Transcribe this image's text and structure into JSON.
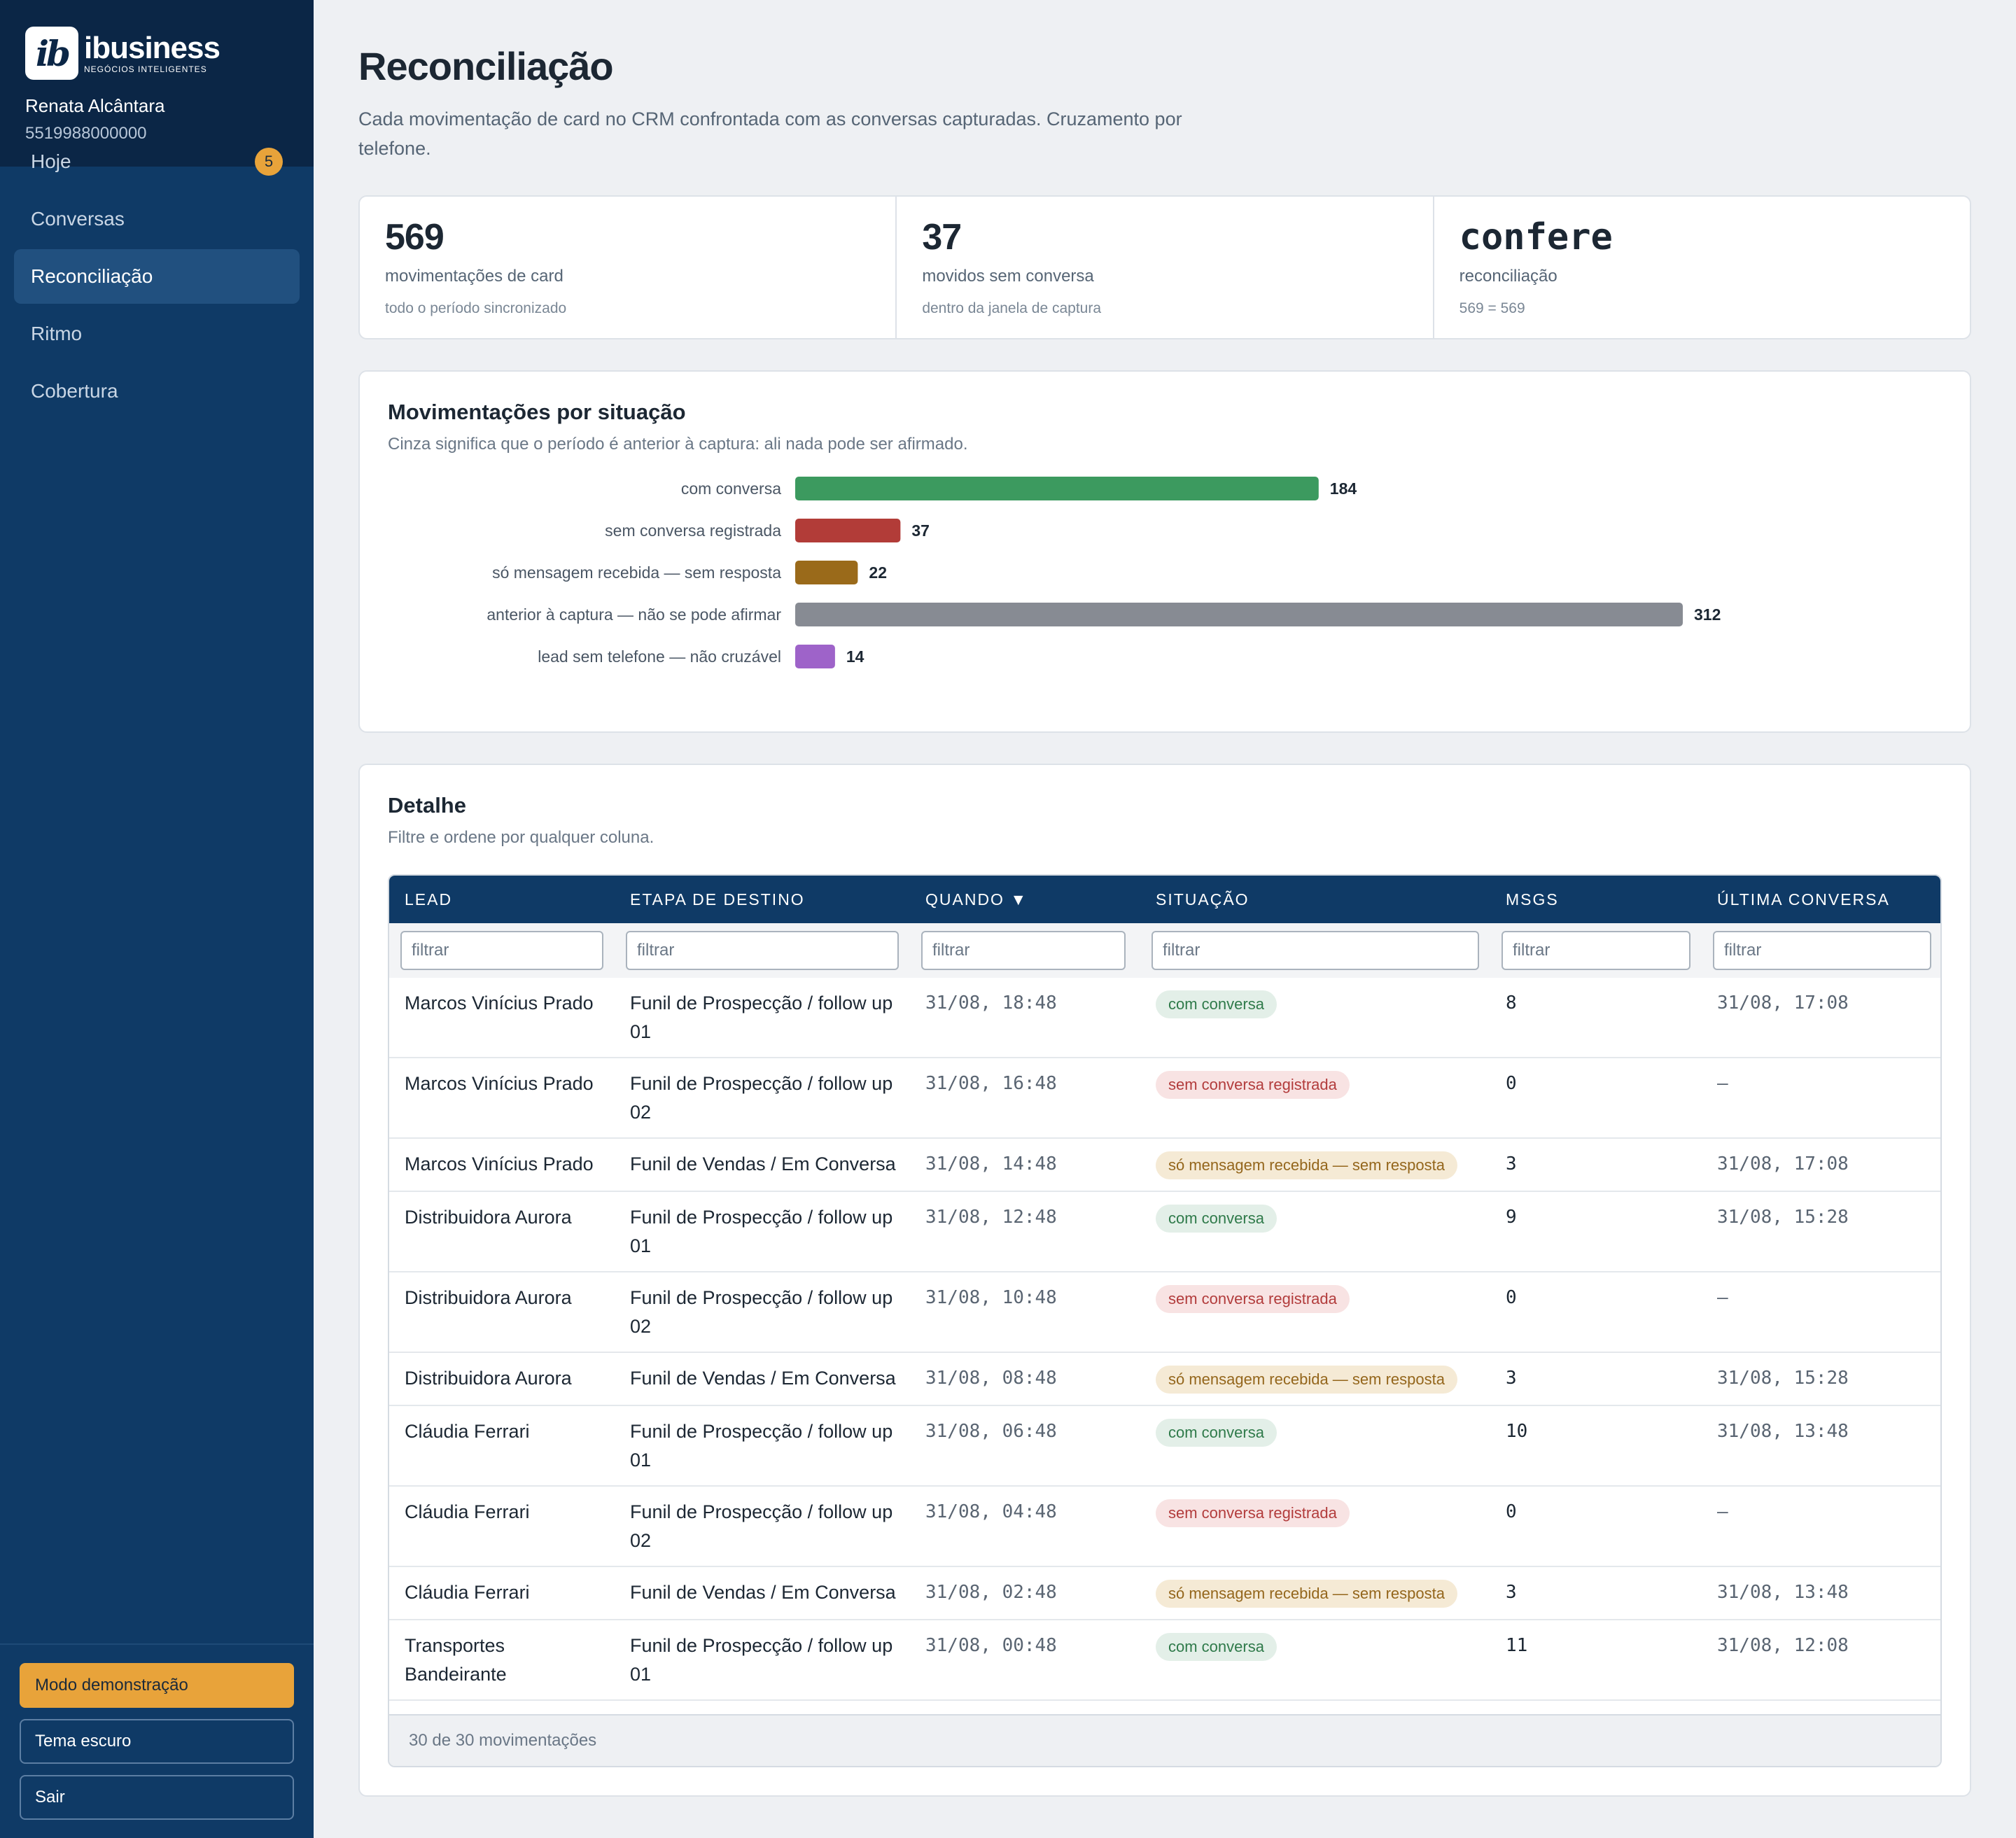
{
  "brand": {
    "mark": "ib",
    "name": "ibusiness",
    "tagline": "NEGÓCIOS INTELIGENTES"
  },
  "user": {
    "name": "Renata Alcântara",
    "phone": "5519988000000"
  },
  "nav": {
    "items": [
      {
        "label": "Hoje",
        "badge": "5"
      },
      {
        "label": "Conversas"
      },
      {
        "label": "Reconciliação",
        "active": true
      },
      {
        "label": "Ritmo"
      },
      {
        "label": "Cobertura"
      }
    ]
  },
  "sidebar_buttons": {
    "demo": "Modo demonstração",
    "theme": "Tema escuro",
    "logout": "Sair"
  },
  "page": {
    "title": "Reconciliação",
    "description": "Cada movimentação de card no CRM confrontada com as conversas capturadas. Cruzamento por telefone."
  },
  "stats": [
    {
      "value": "569",
      "label": "movimentações de card",
      "sub": "todo o período sincronizado"
    },
    {
      "value": "37",
      "label": "movidos sem conversa",
      "sub": "dentro da janela de captura"
    },
    {
      "value": "confere",
      "label": "reconciliação",
      "sub": "569 = 569"
    }
  ],
  "situacao_card": {
    "title": "Movimentações por situação",
    "subtitle": "Cinza significa que o período é anterior à captura: ali nada pode ser afirmado."
  },
  "chart_data": {
    "type": "bar",
    "orientation": "horizontal",
    "categories": [
      "com conversa",
      "sem conversa registrada",
      "só mensagem recebida — sem resposta",
      "anterior à captura — não se pode afirmar",
      "lead sem telefone — não cruzável"
    ],
    "values": [
      184,
      37,
      22,
      312,
      14
    ],
    "colors": [
      "#3c9a5f",
      "#b23c38",
      "#9a6a1a",
      "#878b93",
      "#9e63c9"
    ],
    "xlim": [
      0,
      312
    ],
    "grid": false,
    "data_labels": true
  },
  "detail": {
    "title": "Detalhe",
    "subtitle": "Filtre e ordene por qualquer coluna.",
    "columns": [
      "LEAD",
      "ETAPA DE DESTINO",
      "QUANDO ▼",
      "SITUAÇÃO",
      "MSGS",
      "ÚLTIMA CONVERSA"
    ],
    "filter_placeholder": "filtrar",
    "rows": [
      {
        "lead": "Marcos Vinícius Prado",
        "etapa": "Funil de Prospecção / follow up 01",
        "quando": "31/08, 18:48",
        "situacao": "com conversa",
        "status": "ok",
        "msgs": "8",
        "ultima": "31/08, 17:08"
      },
      {
        "lead": "Marcos Vinícius Prado",
        "etapa": "Funil de Prospecção / follow up 02",
        "quando": "31/08, 16:48",
        "situacao": "sem conversa registrada",
        "status": "none",
        "msgs": "0",
        "ultima": "—"
      },
      {
        "lead": "Marcos Vinícius Prado",
        "etapa": "Funil de Vendas / Em Conversa",
        "quando": "31/08, 14:48",
        "situacao": "só mensagem recebida — sem resposta",
        "status": "recv",
        "msgs": "3",
        "ultima": "31/08, 17:08"
      },
      {
        "lead": "Distribuidora Aurora",
        "etapa": "Funil de Prospecção / follow up 01",
        "quando": "31/08, 12:48",
        "situacao": "com conversa",
        "status": "ok",
        "msgs": "9",
        "ultima": "31/08, 15:28"
      },
      {
        "lead": "Distribuidora Aurora",
        "etapa": "Funil de Prospecção / follow up 02",
        "quando": "31/08, 10:48",
        "situacao": "sem conversa registrada",
        "status": "none",
        "msgs": "0",
        "ultima": "—"
      },
      {
        "lead": "Distribuidora Aurora",
        "etapa": "Funil de Vendas / Em Conversa",
        "quando": "31/08, 08:48",
        "situacao": "só mensagem recebida — sem resposta",
        "status": "recv",
        "msgs": "3",
        "ultima": "31/08, 15:28"
      },
      {
        "lead": "Cláudia Ferrari",
        "etapa": "Funil de Prospecção / follow up 01",
        "quando": "31/08, 06:48",
        "situacao": "com conversa",
        "status": "ok",
        "msgs": "10",
        "ultima": "31/08, 13:48"
      },
      {
        "lead": "Cláudia Ferrari",
        "etapa": "Funil de Prospecção / follow up 02",
        "quando": "31/08, 04:48",
        "situacao": "sem conversa registrada",
        "status": "none",
        "msgs": "0",
        "ultima": "—"
      },
      {
        "lead": "Cláudia Ferrari",
        "etapa": "Funil de Vendas / Em Conversa",
        "quando": "31/08, 02:48",
        "situacao": "só mensagem recebida — sem resposta",
        "status": "recv",
        "msgs": "3",
        "ultima": "31/08, 13:48"
      },
      {
        "lead": "Transportes Bandeirante",
        "etapa": "Funil de Prospecção / follow up 01",
        "quando": "31/08, 00:48",
        "situacao": "com conversa",
        "status": "ok",
        "msgs": "11",
        "ultima": "31/08, 12:08"
      }
    ],
    "footer": "30 de 30 movimentações"
  }
}
